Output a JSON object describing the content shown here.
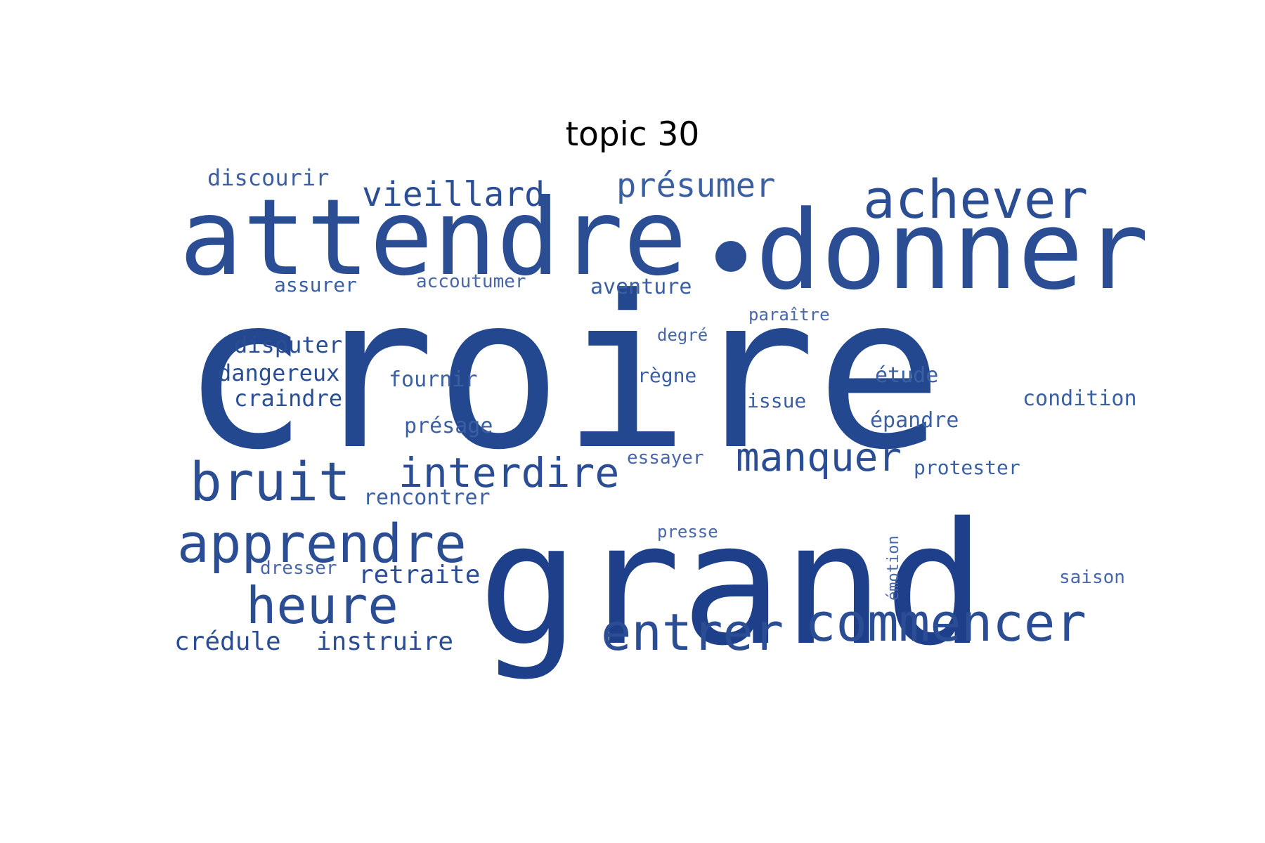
{
  "title": "topic 30",
  "palette": [
    "#1e3f8a",
    "#24488f",
    "#2a4d94",
    "#3a5fa3",
    "#4866ab"
  ],
  "words": [
    {
      "text": "croire",
      "weight": 100
    },
    {
      "text": "grand",
      "weight": 80
    },
    {
      "text": "attendre",
      "weight": 50
    },
    {
      "text": "donner",
      "weight": 52
    },
    {
      "text": "achever",
      "weight": 32
    },
    {
      "text": "bruit",
      "weight": 33
    },
    {
      "text": "apprendre",
      "weight": 33
    },
    {
      "text": "heure",
      "weight": 32
    },
    {
      "text": "commencer",
      "weight": 30
    },
    {
      "text": "entrer",
      "weight": 29
    },
    {
      "text": "interdire",
      "weight": 26
    },
    {
      "text": "manquer",
      "weight": 24
    },
    {
      "text": "vieillard",
      "weight": 22
    },
    {
      "text": "présumer",
      "weight": 21
    },
    {
      "text": "retraite",
      "weight": 16
    },
    {
      "text": "crédule",
      "weight": 15
    },
    {
      "text": "instruire",
      "weight": 15
    },
    {
      "text": "disputer",
      "weight": 14
    },
    {
      "text": "dangereux",
      "weight": 14
    },
    {
      "text": "craindre",
      "weight": 14
    },
    {
      "text": "discourir",
      "weight": 14
    },
    {
      "text": "aventure",
      "weight": 13
    },
    {
      "text": "rencontrer",
      "weight": 13
    },
    {
      "text": "présage",
      "weight": 13
    },
    {
      "text": "fournir",
      "weight": 13
    },
    {
      "text": "étude",
      "weight": 13
    },
    {
      "text": "épandre",
      "weight": 13
    },
    {
      "text": "condition",
      "weight": 13
    },
    {
      "text": "issue",
      "weight": 12
    },
    {
      "text": "règne",
      "weight": 12
    },
    {
      "text": "assurer",
      "weight": 12
    },
    {
      "text": "protester",
      "weight": 12
    },
    {
      "text": "accoutumer",
      "weight": 11
    },
    {
      "text": "essayer",
      "weight": 11
    },
    {
      "text": "dresser",
      "weight": 11
    },
    {
      "text": "saison",
      "weight": 11
    },
    {
      "text": "paraître",
      "weight": 10
    },
    {
      "text": "degré",
      "weight": 10
    },
    {
      "text": "presse",
      "weight": 10
    },
    {
      "text": "émotion",
      "weight": 9
    }
  ]
}
